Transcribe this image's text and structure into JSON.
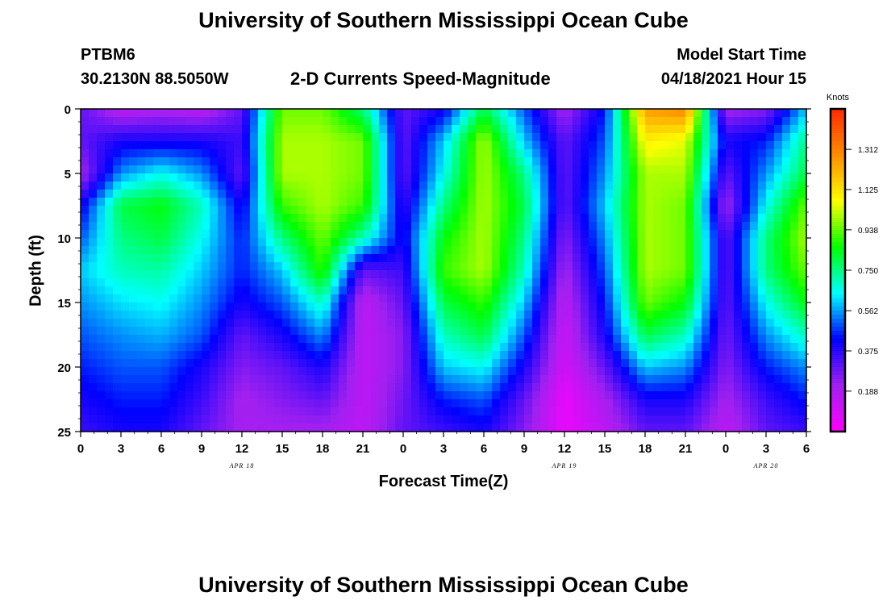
{
  "header": {
    "title": "University of Southern Mississippi Ocean Cube",
    "station_id": "PTBM6",
    "station_coords": "30.2130N  88.5050W",
    "subtitle": "2-D Currents Speed-Magnitude",
    "model_start_label": "Model Start Time",
    "model_start_value": "04/18/2021 Hour 15",
    "footer_title": "University of Southern Mississippi Ocean Cube"
  },
  "colors": {
    "ramp": [
      "#ff00ff",
      "#a020f0",
      "#0000ff",
      "#00ffff",
      "#00ff00",
      "#ffff00",
      "#ff8c00",
      "#ff2a00"
    ],
    "text": "#000000"
  },
  "chart_data": {
    "type": "heatmap",
    "title": "2-D Currents Speed-Magnitude",
    "xlabel": "Forecast Time(Z)",
    "ylabel": "Depth (ft)",
    "x_tick_labels": [
      "0",
      "3",
      "6",
      "9",
      "12",
      "15",
      "18",
      "21",
      "0",
      "3",
      "6",
      "9",
      "12",
      "15",
      "18",
      "21",
      "0",
      "3",
      "6"
    ],
    "x_range_hours": [
      0,
      54
    ],
    "date_labels": [
      {
        "label": "APR 18",
        "hour": 12
      },
      {
        "label": "APR 19",
        "hour": 36
      },
      {
        "label": "APR 20",
        "hour": 51
      }
    ],
    "y_ticks": [
      0,
      5,
      10,
      15,
      20,
      25
    ],
    "y_range_ft": [
      0,
      25
    ],
    "y_inverted": true,
    "colorbar": {
      "unit": "Knots",
      "ticks": [
        "0.188",
        "0.375",
        "0.562",
        "0.750",
        "0.938",
        "1.125",
        "1.312"
      ],
      "range": [
        0,
        1.5
      ]
    },
    "speed_field_knots": {
      "depths_ft": [
        0,
        2.5,
        5,
        7.5,
        10,
        12.5,
        15,
        17.5,
        20,
        22.5,
        25
      ],
      "hours": [
        0,
        3,
        6,
        9,
        12,
        15,
        18,
        21,
        24,
        27,
        30,
        33,
        36,
        39,
        42,
        45,
        48,
        51,
        54
      ],
      "values": [
        [
          0.3,
          0.15,
          0.18,
          0.15,
          0.3,
          0.95,
          0.95,
          0.75,
          0.3,
          0.4,
          0.8,
          0.5,
          0.2,
          0.45,
          1.25,
          1.3,
          0.2,
          0.25,
          0.6
        ],
        [
          0.3,
          0.4,
          0.4,
          0.4,
          0.35,
          1.0,
          1.0,
          0.95,
          0.3,
          0.6,
          1.0,
          0.6,
          0.3,
          0.5,
          1.1,
          1.05,
          0.4,
          0.45,
          0.75
        ],
        [
          0.2,
          0.55,
          0.65,
          0.55,
          0.3,
          1.0,
          1.0,
          0.95,
          0.3,
          0.65,
          1.0,
          0.75,
          0.3,
          0.55,
          1.0,
          1.0,
          0.3,
          0.55,
          0.8
        ],
        [
          0.4,
          0.8,
          0.85,
          0.7,
          0.4,
          0.9,
          1.0,
          0.9,
          0.35,
          0.75,
          1.0,
          0.8,
          0.3,
          0.6,
          1.0,
          0.95,
          0.2,
          0.65,
          0.95
        ],
        [
          0.5,
          0.75,
          0.8,
          0.65,
          0.45,
          0.75,
          0.95,
          0.7,
          0.4,
          0.85,
          1.0,
          0.75,
          0.25,
          0.55,
          1.0,
          0.95,
          0.3,
          0.75,
          1.0
        ],
        [
          0.6,
          0.7,
          0.72,
          0.6,
          0.45,
          0.6,
          0.9,
          0.3,
          0.35,
          0.9,
          1.0,
          0.7,
          0.2,
          0.5,
          1.0,
          0.95,
          0.3,
          0.75,
          0.95
        ],
        [
          0.55,
          0.62,
          0.65,
          0.55,
          0.4,
          0.5,
          0.7,
          0.15,
          0.3,
          0.8,
          0.9,
          0.6,
          0.15,
          0.45,
          0.95,
          0.85,
          0.3,
          0.65,
          0.85
        ],
        [
          0.5,
          0.55,
          0.58,
          0.5,
          0.3,
          0.4,
          0.55,
          0.15,
          0.25,
          0.7,
          0.8,
          0.5,
          0.12,
          0.4,
          0.8,
          0.7,
          0.28,
          0.55,
          0.7
        ],
        [
          0.45,
          0.5,
          0.5,
          0.4,
          0.25,
          0.3,
          0.4,
          0.15,
          0.25,
          0.6,
          0.65,
          0.4,
          0.1,
          0.3,
          0.6,
          0.55,
          0.25,
          0.45,
          0.55
        ],
        [
          0.4,
          0.45,
          0.45,
          0.35,
          0.2,
          0.25,
          0.3,
          0.15,
          0.28,
          0.45,
          0.5,
          0.3,
          0.05,
          0.2,
          0.4,
          0.4,
          0.2,
          0.35,
          0.45
        ],
        [
          0.35,
          0.4,
          0.4,
          0.3,
          0.2,
          0.2,
          0.2,
          0.15,
          0.3,
          0.35,
          0.4,
          0.25,
          0.05,
          0.15,
          0.3,
          0.3,
          0.15,
          0.3,
          0.35
        ]
      ]
    }
  }
}
